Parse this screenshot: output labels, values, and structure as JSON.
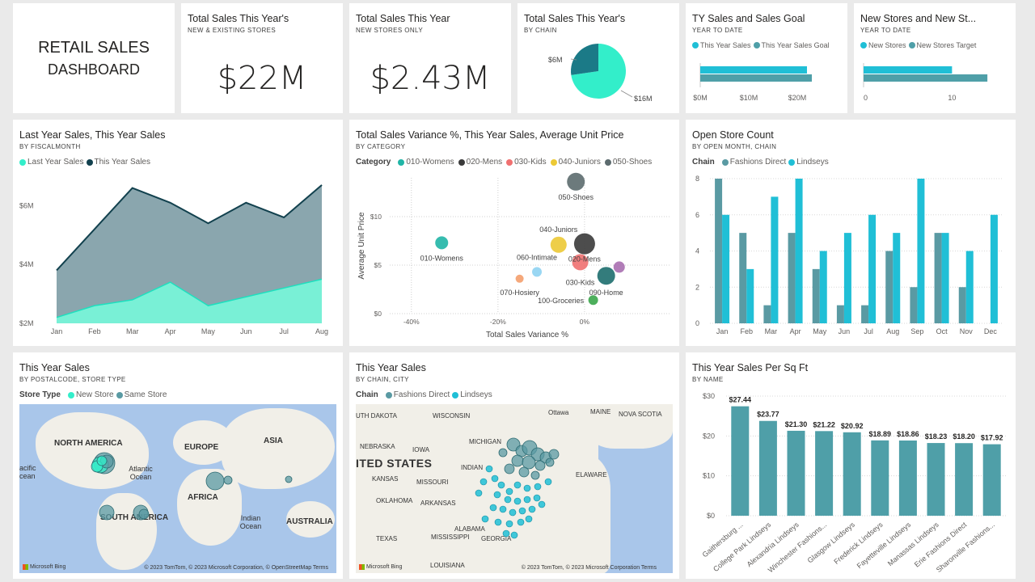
{
  "dashboard_title": {
    "line1": "RETAIL SALES",
    "line2": "DASHBOARD"
  },
  "colors": {
    "teal_light": "#33eeca",
    "teal_dark": "#1b7a87",
    "navy": "#12414e",
    "grey_teal": "#5a9aa3",
    "cyan": "#20bfd6",
    "bar_teal": "#4f9fa8"
  },
  "kpi_total": {
    "title": "Total Sales This Year's",
    "subtitle": "NEW & EXISTING STORES",
    "value": "$22M"
  },
  "kpi_new": {
    "title": "Total Sales This Year",
    "subtitle": "NEW STORES ONLY",
    "value": "$2.43M"
  },
  "pie": {
    "title": "Total Sales This Year's",
    "subtitle": "BY CHAIN",
    "chart_data": {
      "type": "pie",
      "slices": [
        {
          "label": "$16M",
          "value": 16
        },
        {
          "label": "$6M",
          "value": 6
        }
      ]
    }
  },
  "ty_goal": {
    "title": "TY Sales and Sales Goal",
    "subtitle": "YEAR TO DATE",
    "legend": [
      "This Year Sales",
      "This Year Sales Goal"
    ],
    "chart_data": {
      "type": "bar",
      "orientation": "horizontal",
      "series": [
        {
          "name": "This Year Sales",
          "values": [
            22
          ]
        },
        {
          "name": "This Year Sales Goal",
          "values": [
            23
          ]
        }
      ],
      "xlim": [
        0,
        25
      ],
      "ticks": [
        "$0M",
        "$10M",
        "$20M"
      ]
    }
  },
  "new_stores": {
    "title": "New Stores and New St...",
    "subtitle": "YEAR TO DATE",
    "legend": [
      "New Stores",
      "New Stores Target"
    ],
    "chart_data": {
      "type": "bar",
      "orientation": "horizontal",
      "series": [
        {
          "name": "New Stores",
          "values": [
            10
          ]
        },
        {
          "name": "New Stores Target",
          "values": [
            14
          ]
        }
      ],
      "xlim": [
        0,
        16
      ],
      "ticks": [
        "0",
        "10"
      ]
    }
  },
  "area": {
    "title": "Last Year Sales, This Year Sales",
    "subtitle": "BY FISCALMONTH",
    "legend": [
      "Last Year Sales",
      "This Year Sales"
    ],
    "chart_data": {
      "type": "area",
      "categories": [
        "Jan",
        "Feb",
        "Mar",
        "Apr",
        "May",
        "Jun",
        "Jul",
        "Aug"
      ],
      "series": [
        {
          "name": "Last Year Sales",
          "values": [
            2.2,
            2.6,
            2.8,
            3.4,
            2.6,
            2.9,
            3.2,
            3.5
          ]
        },
        {
          "name": "This Year Sales",
          "values": [
            3.8,
            5.2,
            6.6,
            6.1,
            5.4,
            6.1,
            5.6,
            6.7
          ]
        }
      ],
      "ylim": [
        2,
        7
      ],
      "yticks": [
        "$2M",
        "$4M",
        "$6M"
      ]
    }
  },
  "scatter": {
    "title": "Total Sales Variance %, This Year Sales, Average Unit Price",
    "subtitle": "BY CATEGORY",
    "legend_title": "Category",
    "legend": [
      {
        "label": "010-Womens",
        "color": "#20b5a6"
      },
      {
        "label": "020-Mens",
        "color": "#3a3a3a"
      },
      {
        "label": "030-Kids",
        "color": "#f07070"
      },
      {
        "label": "040-Juniors",
        "color": "#ecc935"
      },
      {
        "label": "050-Shoes",
        "color": "#5c6b6e"
      }
    ],
    "chart_data": {
      "type": "scatter",
      "xlabel": "Total Sales Variance %",
      "ylabel": "Average Unit Price",
      "xlim": [
        -45,
        20
      ],
      "ylim": [
        0,
        14
      ],
      "xticks": [
        "-40%",
        "-20%",
        "0%"
      ],
      "yticks": [
        "$0",
        "$5",
        "$10"
      ],
      "points": [
        {
          "label": "010-Womens",
          "x": -33,
          "y": 7.3,
          "r": 8,
          "color": "#20b5a6"
        },
        {
          "label": "050-Shoes",
          "x": -2,
          "y": 13.6,
          "r": 11,
          "color": "#5c6b6e"
        },
        {
          "label": "040-Juniors",
          "x": -6,
          "y": 7.1,
          "r": 10,
          "color": "#ecc935"
        },
        {
          "label": "020-Mens",
          "x": 0,
          "y": 7.2,
          "r": 13,
          "color": "#3a3a3a"
        },
        {
          "label": "030-Kids",
          "x": -1,
          "y": 5.3,
          "r": 10,
          "color": "#f07070"
        },
        {
          "label": "090-Home",
          "x": 5,
          "y": 3.9,
          "r": 11,
          "color": "#1d6e6e"
        },
        {
          "label": "060-Intimate",
          "x": -11,
          "y": 4.3,
          "r": 6,
          "color": "#8fd3f2"
        },
        {
          "label": "070-Hosiery",
          "x": -15,
          "y": 3.6,
          "r": 5,
          "color": "#f49e6d"
        },
        {
          "label": "100-Groceries",
          "x": 2,
          "y": 1.4,
          "r": 6,
          "color": "#3aa64a"
        },
        {
          "label": "",
          "x": 8,
          "y": 4.8,
          "r": 7,
          "color": "#a96fb0"
        }
      ]
    }
  },
  "store_count": {
    "title": "Open Store Count",
    "subtitle": "BY OPEN MONTH, CHAIN",
    "legend_title": "Chain",
    "legend": [
      "Fashions Direct",
      "Lindseys"
    ],
    "chart_data": {
      "type": "bar",
      "categories": [
        "Jan",
        "Feb",
        "Mar",
        "Apr",
        "May",
        "Jun",
        "Jul",
        "Aug",
        "Sep",
        "Oct",
        "Nov",
        "Dec"
      ],
      "series": [
        {
          "name": "Fashions Direct",
          "values": [
            8,
            5,
            1,
            5,
            3,
            1,
            1,
            4,
            2,
            5,
            2,
            0
          ]
        },
        {
          "name": "Lindseys",
          "values": [
            6,
            3,
            7,
            8,
            4,
            5,
            6,
            5,
            8,
            5,
            4,
            6
          ]
        }
      ],
      "ylim": [
        0,
        8
      ],
      "yticks": [
        "0",
        "2",
        "4",
        "6",
        "8"
      ]
    }
  },
  "map1": {
    "title": "This Year Sales",
    "subtitle": "BY POSTALCODE, STORE TYPE",
    "legend_title": "Store Type",
    "legend": [
      "New Store",
      "Same Store"
    ],
    "labels": [
      "NORTH AMERICA",
      "EUROPE",
      "ASIA",
      "AFRICA",
      "SOUTH AMERICA",
      "AUSTRALIA",
      "Atlantic Ocean",
      "Indian Ocean",
      "acific cean"
    ],
    "footer": "© 2023 TomTom, © 2023 Microsoft Corporation, © OpenStreetMap  Terms",
    "brand": "Microsoft Bing"
  },
  "map2": {
    "title": "This Year Sales",
    "subtitle": "BY CHAIN, CITY",
    "legend_title": "Chain",
    "legend": [
      "Fashions Direct",
      "Lindseys"
    ],
    "labels": [
      "UTH DAKOTA",
      "WISCONSIN",
      "MICHIGAN",
      "Ottawa",
      "MAINE",
      "NOVA SCOTIA",
      "NEBRASKA",
      "IOWA",
      "ITED STATES",
      "KANSAS",
      "MISSOURI",
      "INDIAN",
      "OKLAHOMA",
      "ARKANSAS",
      "TEXAS",
      "MISSISSIPPI",
      "ALABAMA",
      "GEORGIA",
      "LOUISIANA",
      "ELAWARE"
    ],
    "footer": "© 2023 TomTom, © 2023 Microsoft Corporation  Terms",
    "brand": "Microsoft Bing"
  },
  "sqft": {
    "title": "This Year Sales Per Sq Ft",
    "subtitle": "BY NAME",
    "chart_data": {
      "type": "bar",
      "categories": [
        "Gaithersburg ...",
        "College Park Lindseys",
        "Alexandria Lindseys",
        "Winchester Fashions...",
        "Glasgow Lindseys",
        "Frederick Lindseys",
        "Fayetteville Lindseys",
        "Manassas Lindseys",
        "Erie Fashions Direct",
        "Sharonville Fashions..."
      ],
      "values": [
        27.44,
        23.77,
        21.3,
        21.22,
        20.92,
        18.89,
        18.86,
        18.23,
        18.2,
        17.92
      ],
      "data_labels": [
        "$27.44",
        "$23.77",
        "$21.30",
        "$21.22",
        "$20.92",
        "$18.89",
        "$18.86",
        "$18.23",
        "$18.20",
        "$17.92"
      ],
      "ylim": [
        0,
        30
      ],
      "yticks": [
        "$0",
        "$10",
        "$20",
        "$30"
      ]
    }
  }
}
